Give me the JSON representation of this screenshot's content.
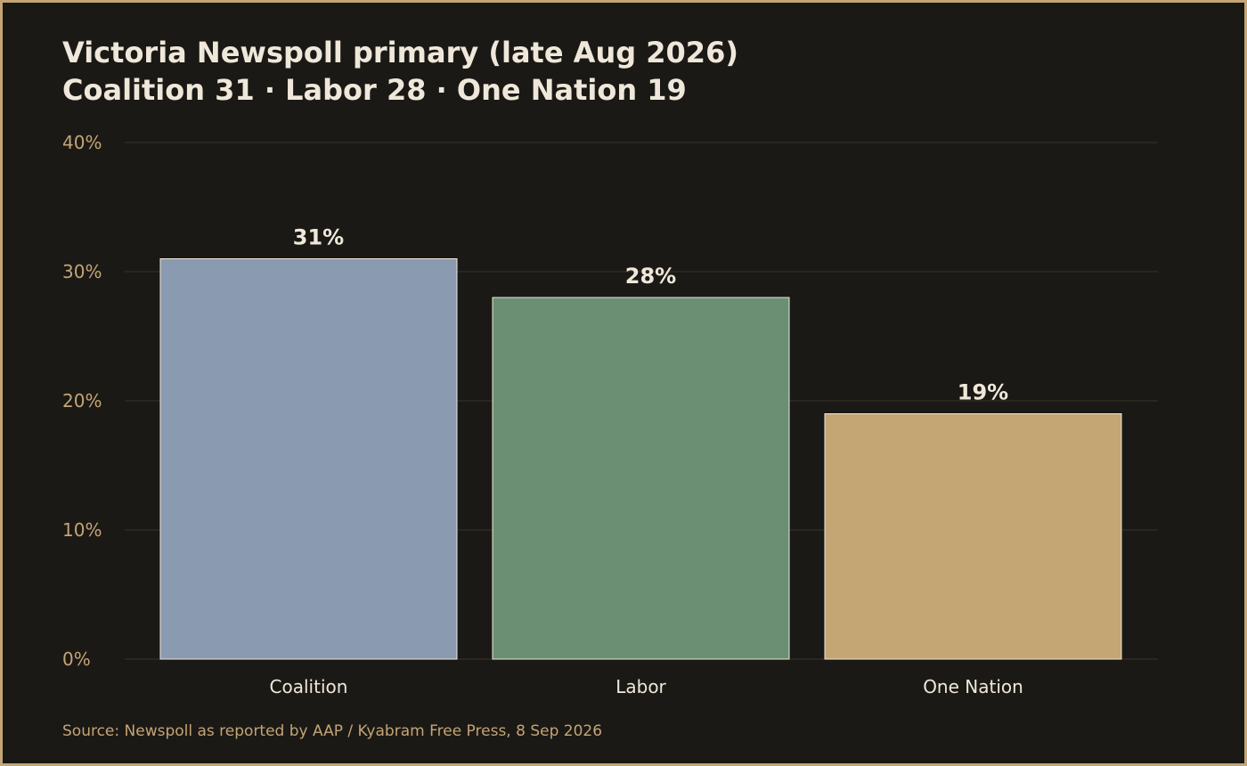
{
  "chart_data": {
    "type": "bar",
    "title": "Victoria Newspoll primary (late Aug 2026)",
    "subtitle": "Coalition 31 · Labor 28 · One Nation 19",
    "xlabel": "",
    "ylabel": "",
    "categories": [
      "Coalition",
      "Labor",
      "One Nation"
    ],
    "values": [
      31,
      28,
      19
    ],
    "value_labels": [
      "31%",
      "28%",
      "19%"
    ],
    "bar_colors": [
      "#8a9ab0",
      "#6b8f72",
      "#c4a574"
    ],
    "ylim": [
      0,
      40
    ],
    "yticks": [
      0,
      10,
      20,
      30,
      40
    ],
    "ytick_labels": [
      "0%",
      "10%",
      "20%",
      "30%",
      "40%"
    ],
    "grid": true,
    "legend": "none"
  },
  "source": "Source: Newspoll as reported by AAP / Kyabram Free Press, 8 Sep 2026",
  "colors": {
    "background": "#1b1916",
    "border": "#c4a574",
    "text": "#efe8da",
    "muted": "#c4a574",
    "grid": "#3a332b",
    "bar_outline": "#efe8da"
  }
}
